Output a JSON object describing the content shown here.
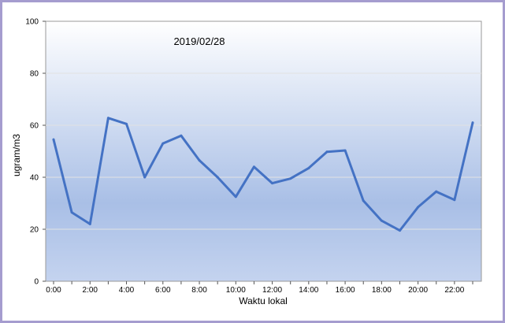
{
  "chart_data": {
    "type": "line",
    "title": "2019/02/28",
    "xlabel": "Waktu lokal",
    "ylabel": "ugram/m3",
    "ylim": [
      0,
      100
    ],
    "yticks": [
      "0",
      "20",
      "40",
      "60",
      "80",
      "100"
    ],
    "xlim": [
      0,
      23
    ],
    "xticks": [
      "0:00",
      "2:00",
      "4:00",
      "6:00",
      "8:00",
      "10:00",
      "12:00",
      "14:00",
      "16:00",
      "18:00",
      "20:00",
      "22:00"
    ],
    "grid": true,
    "legend": "none",
    "line_color": "#4472c4",
    "series": [
      {
        "x": [
          0,
          1,
          2,
          3,
          4,
          5,
          6,
          7,
          8,
          9,
          10,
          11,
          12,
          13,
          14,
          15,
          16,
          17,
          18,
          19,
          20,
          21,
          22,
          23
        ],
        "values": [
          54.5,
          26.5,
          22,
          62.8,
          60.5,
          40,
          53,
          56,
          46.5,
          40,
          32.5,
          44,
          37.7,
          39.5,
          43.5,
          49.8,
          50.3,
          31,
          23.3,
          19.5,
          28.5,
          34.5,
          31.3,
          61
        ]
      }
    ]
  }
}
